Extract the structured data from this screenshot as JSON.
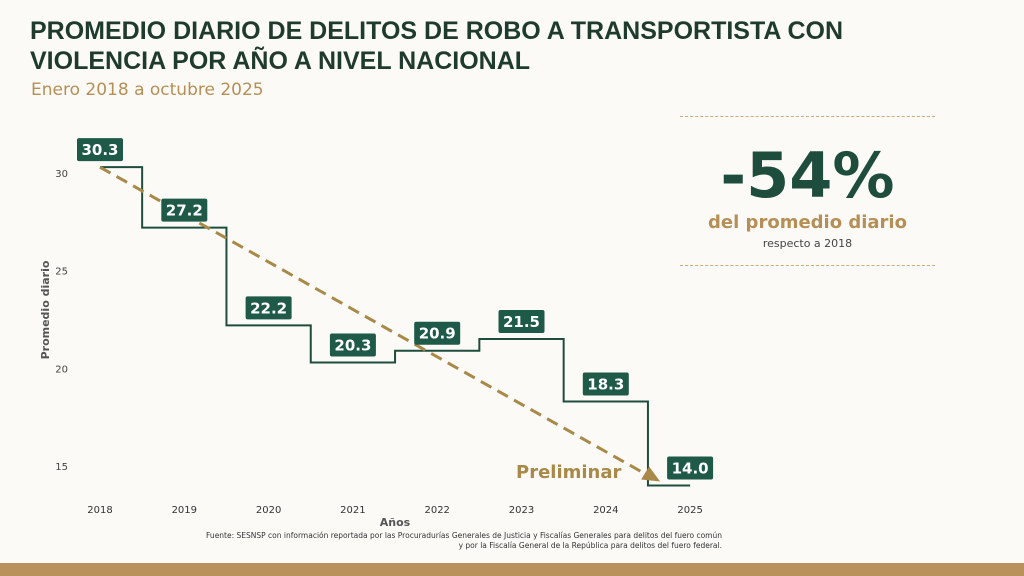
{
  "header": {
    "title": "PROMEDIO DIARIO DE DELITOS DE ROBO A TRANSPORTISTA CON VIOLENCIA POR AÑO A NIVEL NACIONAL",
    "subtitle": "Enero 2018 a octubre 2025"
  },
  "kpi": {
    "value": "-54%",
    "label": "del promedio diario",
    "sublabel": "respecto a 2018"
  },
  "annotation": "Preliminar",
  "source": {
    "line1": "Fuente: SESNSP con información reportada por las Procuradurías Generales de Justicia y Fiscalías Generales para delitos del fuero común",
    "line2": "y por la Fiscalía General de la República para delitos del fuero federal."
  },
  "colors": {
    "step": "#1f4d3d",
    "trend": "#a88948",
    "label_bg": "#1f5a48"
  },
  "chart_data": {
    "type": "line",
    "step": true,
    "categories": [
      "2018",
      "2019",
      "2020",
      "2021",
      "2022",
      "2023",
      "2024",
      "2025"
    ],
    "values": [
      30.3,
      27.2,
      22.2,
      20.3,
      20.9,
      21.5,
      18.3,
      14.0
    ],
    "data_labels": [
      "30.3",
      "27.2",
      "22.2",
      "20.3",
      "20.9",
      "21.5",
      "18.3",
      "14.0"
    ],
    "trendline": {
      "style": "dashed-arrow",
      "from": 30.3,
      "to": 14.0
    },
    "xlabel": "Años",
    "ylabel": "Promedio diario",
    "yticks": [
      "15",
      "20",
      "25",
      "30"
    ],
    "ylim": [
      13.5,
      31
    ]
  }
}
